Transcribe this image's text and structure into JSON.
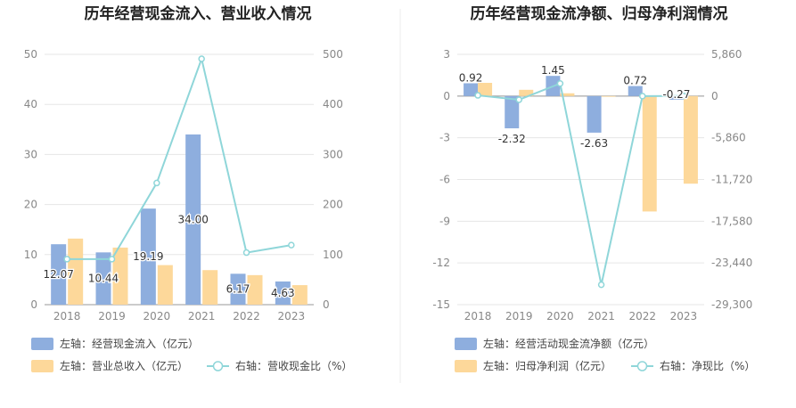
{
  "chart_data": [
    {
      "type": "bar",
      "title": "历年经营现金流入、营业收入情况",
      "categories": [
        "2018",
        "2019",
        "2020",
        "2021",
        "2022",
        "2023"
      ],
      "left_axis": {
        "ylim": [
          0,
          50
        ],
        "ticks": [
          "0",
          "10",
          "20",
          "30",
          "40",
          "50"
        ]
      },
      "right_axis": {
        "ylim": [
          0,
          500
        ],
        "ticks": [
          "0",
          "100",
          "200",
          "300",
          "400",
          "500"
        ]
      },
      "series": [
        {
          "name": "左轴：经营现金流入（亿元）",
          "axis": "left",
          "type": "bar",
          "color": "#8eaede",
          "values": [
            12.07,
            10.44,
            19.19,
            34.0,
            6.17,
            4.63
          ],
          "labels": [
            "12.07",
            "10.44",
            "19.19",
            "34.00",
            "6.17",
            "4.63"
          ]
        },
        {
          "name": "左轴：营业总收入（亿元）",
          "axis": "left",
          "type": "bar",
          "color": "#fdd89a",
          "values": [
            13.2,
            11.4,
            7.9,
            6.9,
            5.9,
            3.9
          ]
        },
        {
          "name": "右轴：营收现金比（%）",
          "axis": "right",
          "type": "line",
          "color": "#8fd6d9",
          "values": [
            91,
            91,
            243,
            491,
            104,
            119
          ]
        }
      ]
    },
    {
      "type": "bar",
      "title": "历年经营现金流净额、归母净利润情况",
      "categories": [
        "2018",
        "2019",
        "2020",
        "2021",
        "2022",
        "2023"
      ],
      "left_axis": {
        "ylim": [
          -15,
          3
        ],
        "ticks": [
          "-15",
          "-12",
          "-9",
          "-6",
          "-3",
          "0",
          "3"
        ]
      },
      "right_axis": {
        "ylim": [
          -29300,
          5860
        ],
        "ticks": [
          "-29,300",
          "-23,440",
          "-17,580",
          "-11,720",
          "-5,860",
          "0",
          "5,860"
        ]
      },
      "series": [
        {
          "name": "左轴：经营活动现金流净额（亿元）",
          "axis": "left",
          "type": "bar",
          "color": "#8eaede",
          "values": [
            0.92,
            -2.32,
            1.45,
            -2.63,
            0.72,
            -0.27
          ],
          "labels": [
            "0.92",
            "-2.32",
            "1.45",
            "-2.63",
            "0.72",
            "-0.27"
          ]
        },
        {
          "name": "左轴：归母净利润（亿元）",
          "axis": "left",
          "type": "bar",
          "color": "#fdd89a",
          "values": [
            0.95,
            0.45,
            0.2,
            -0.05,
            -8.3,
            -6.3
          ]
        },
        {
          "name": "右轴：净现比（%）",
          "axis": "right",
          "type": "line",
          "color": "#8fd6d9",
          "values": [
            97,
            -515,
            1762,
            -26500,
            -8.7,
            4.3
          ]
        }
      ]
    }
  ]
}
